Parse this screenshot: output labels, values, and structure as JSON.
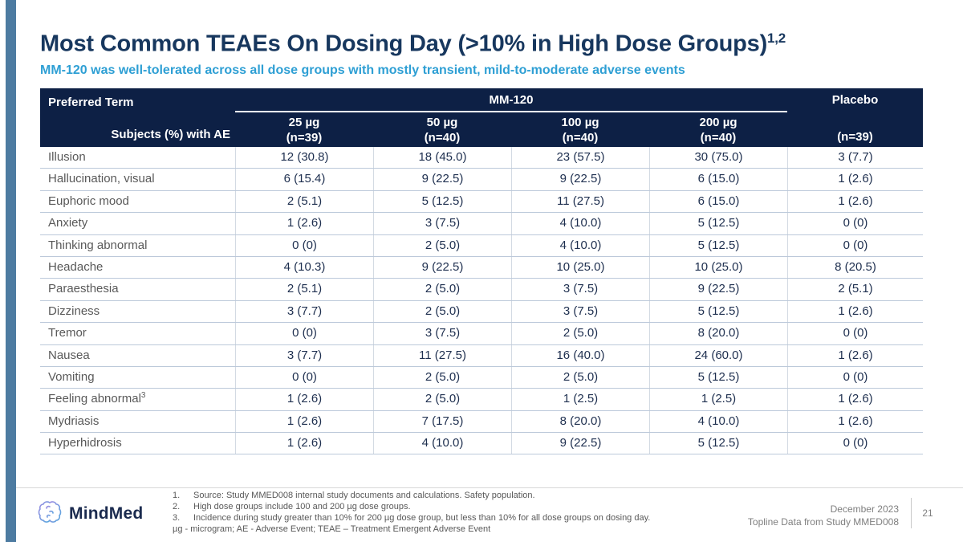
{
  "slide": {
    "title": "Most Common TEAEs On Dosing Day (>10% in High Dose Groups)",
    "title_superscript": "1,2",
    "subtitle": "MM-120 was well-tolerated across all dose groups with mostly transient, mild-to-moderate adverse events"
  },
  "table": {
    "corner_label": "Preferred Term",
    "corner_sublabel": "Subjects (%) with AE",
    "group_header": "MM-120",
    "placebo_header": "Placebo",
    "placebo_n": "(n=39)",
    "dose_columns": [
      {
        "dose": "25 µg",
        "n": "(n=39)"
      },
      {
        "dose": "50 µg",
        "n": "(n=40)"
      },
      {
        "dose": "100 µg",
        "n": "(n=40)"
      },
      {
        "dose": "200 µg",
        "n": "(n=40)"
      }
    ],
    "rows": [
      {
        "term": "Illusion",
        "values": [
          "12 (30.8)",
          "18 (45.0)",
          "23 (57.5)",
          "30 (75.0)",
          "3 (7.7)"
        ]
      },
      {
        "term": "Hallucination, visual",
        "values": [
          "6 (15.4)",
          "9 (22.5)",
          "9 (22.5)",
          "6 (15.0)",
          "1 (2.6)"
        ]
      },
      {
        "term": "Euphoric mood",
        "values": [
          "2 (5.1)",
          "5 (12.5)",
          "11 (27.5)",
          "6 (15.0)",
          "1 (2.6)"
        ]
      },
      {
        "term": "Anxiety",
        "values": [
          "1 (2.6)",
          "3 (7.5)",
          "4 (10.0)",
          "5 (12.5)",
          "0 (0)"
        ]
      },
      {
        "term": "Thinking abnormal",
        "values": [
          "0 (0)",
          "2 (5.0)",
          "4 (10.0)",
          "5 (12.5)",
          "0 (0)"
        ]
      },
      {
        "term": "Headache",
        "values": [
          "4 (10.3)",
          "9 (22.5)",
          "10 (25.0)",
          "10 (25.0)",
          "8 (20.5)"
        ]
      },
      {
        "term": "Paraesthesia",
        "values": [
          "2 (5.1)",
          "2 (5.0)",
          "3 (7.5)",
          "9 (22.5)",
          "2 (5.1)"
        ]
      },
      {
        "term": "Dizziness",
        "values": [
          "3 (7.7)",
          "2 (5.0)",
          "3 (7.5)",
          "5 (12.5)",
          "1 (2.6)"
        ]
      },
      {
        "term": "Tremor",
        "values": [
          "0 (0)",
          "3 (7.5)",
          "2 (5.0)",
          "8 (20.0)",
          "0 (0)"
        ]
      },
      {
        "term": "Nausea",
        "values": [
          "3 (7.7)",
          "11 (27.5)",
          "16 (40.0)",
          "24 (60.0)",
          "1 (2.6)"
        ]
      },
      {
        "term": "Vomiting",
        "values": [
          "0 (0)",
          "2 (5.0)",
          "2 (5.0)",
          "5 (12.5)",
          "0 (0)"
        ]
      },
      {
        "term": "Feeling abnormal",
        "term_superscript": "3",
        "values": [
          "1 (2.6)",
          "2 (5.0)",
          "1 (2.5)",
          "1 (2.5)",
          "1 (2.6)"
        ]
      },
      {
        "term": "Mydriasis",
        "values": [
          "1 (2.6)",
          "7 (17.5)",
          "8 (20.0)",
          "4 (10.0)",
          "1 (2.6)"
        ]
      },
      {
        "term": "Hyperhidrosis",
        "values": [
          "1 (2.6)",
          "4 (10.0)",
          "9 (22.5)",
          "5 (12.5)",
          "0 (0)"
        ]
      }
    ]
  },
  "footnotes": [
    {
      "num": "1.",
      "text": "Source: Study MMED008 internal study documents and calculations. Safety population."
    },
    {
      "num": "2.",
      "text": "High dose groups include 100 and 200 µg dose groups."
    },
    {
      "num": "3.",
      "text": "Incidence during study greater than 10% for 200 µg dose group, but less than 10% for all dose groups on dosing day."
    }
  ],
  "abbreviations": "µg - microgram; AE - Adverse Event; TEAE – Treatment Emergent Adverse Event",
  "footer": {
    "logo_text": "MindMed",
    "date": "December 2023",
    "source": "Topline Data from Study MMED008",
    "page_number": "21"
  },
  "colors": {
    "header_bg": "#0d2045",
    "title": "#17375e",
    "subtitle": "#2e9fd4",
    "left_bar": "#4d7ba1",
    "value_text": "#1e2f4f",
    "label_text": "#595959"
  }
}
